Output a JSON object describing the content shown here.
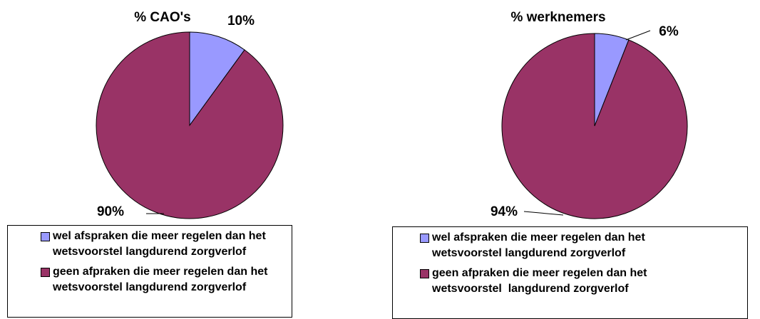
{
  "chart_data": [
    {
      "type": "pie",
      "title": "% CAO's",
      "categories": [
        "wel afspraken die meer regelen dan het wetsvoorstel langdurend zorgverlof",
        "geen afpraken die meer regelen dan het wetsvoorstel langdurend zorgverlof"
      ],
      "values": [
        10,
        90
      ],
      "value_labels": [
        "10%",
        "90%"
      ],
      "colors": [
        "#9999ff",
        "#993366"
      ]
    },
    {
      "type": "pie",
      "title": "% werknemers",
      "categories": [
        "wel afspraken die meer regelen dan het wetsvoorstel langdurend zorgverlof",
        "geen afpraken die meer regelen dan het wetsvoorstel  langdurend zorgverlof"
      ],
      "values": [
        6,
        94
      ],
      "value_labels": [
        "6%",
        "94%"
      ],
      "colors": [
        "#9999ff",
        "#993366"
      ]
    }
  ]
}
